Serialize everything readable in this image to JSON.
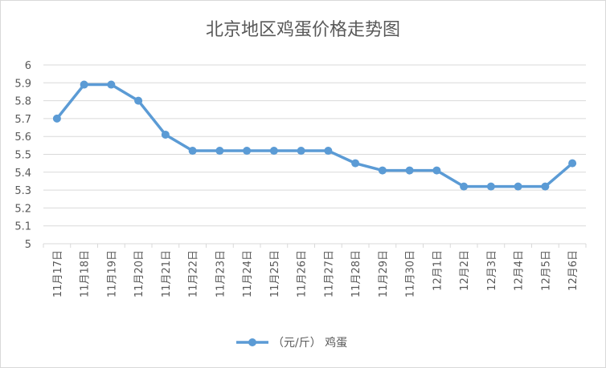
{
  "chart_data": {
    "type": "line",
    "title": "北京地区鸡蛋价格走势图",
    "categories": [
      "11月17日",
      "11月18日",
      "11月19日",
      "11月20日",
      "11月21日",
      "11月22日",
      "11月23日",
      "11月24日",
      "11月25日",
      "11月26日",
      "11月27日",
      "11月28日",
      "11月29日",
      "11月30日",
      "12月1日",
      "12月2日",
      "12月3日",
      "12月4日",
      "12月5日",
      "12月6日"
    ],
    "series": [
      {
        "name": "（元/斤） 鸡蛋",
        "values": [
          5.7,
          5.89,
          5.89,
          5.8,
          5.61,
          5.52,
          5.52,
          5.52,
          5.52,
          5.52,
          5.52,
          5.45,
          5.41,
          5.41,
          5.41,
          5.32,
          5.32,
          5.32,
          5.32,
          5.45
        ]
      }
    ],
    "ylim": [
      5,
      6
    ],
    "yticks": [
      "6",
      "5.9",
      "5.8",
      "5.7",
      "5.6",
      "5.5",
      "5.4",
      "5.3",
      "5.2",
      "5.1",
      "5"
    ],
    "grid": true,
    "legend": "bottom",
    "colors": {
      "series": "#5b9bd5",
      "grid": "#d9d9d9",
      "text": "#595959"
    }
  }
}
